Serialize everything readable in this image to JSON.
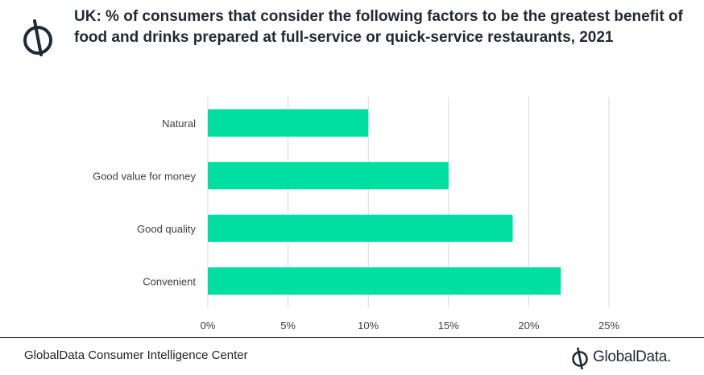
{
  "title": "UK: % of consumers that consider the following factors to be the greatest benefit of food and drinks prepared at full-service or quick-service restaurants, 2021",
  "source": "GlobalData Consumer Intelligence Center",
  "brand": "GlobalData.",
  "colors": {
    "bar": "#00DFA2",
    "grid": "#d9d9d9",
    "text": "#404040",
    "title": "#1f2a36"
  },
  "icons": {
    "header": "globaldata-logo-icon",
    "footer": "globaldata-logo-icon"
  },
  "chart_data": {
    "type": "bar",
    "orientation": "horizontal",
    "categories": [
      "Natural",
      "Good value for money",
      "Good quality",
      "Convenient"
    ],
    "values": [
      10,
      15,
      19,
      22
    ],
    "xlim": [
      0,
      25
    ],
    "xticks": [
      "0%",
      "5%",
      "10%",
      "15%",
      "20%",
      "25%"
    ],
    "grid": true
  }
}
